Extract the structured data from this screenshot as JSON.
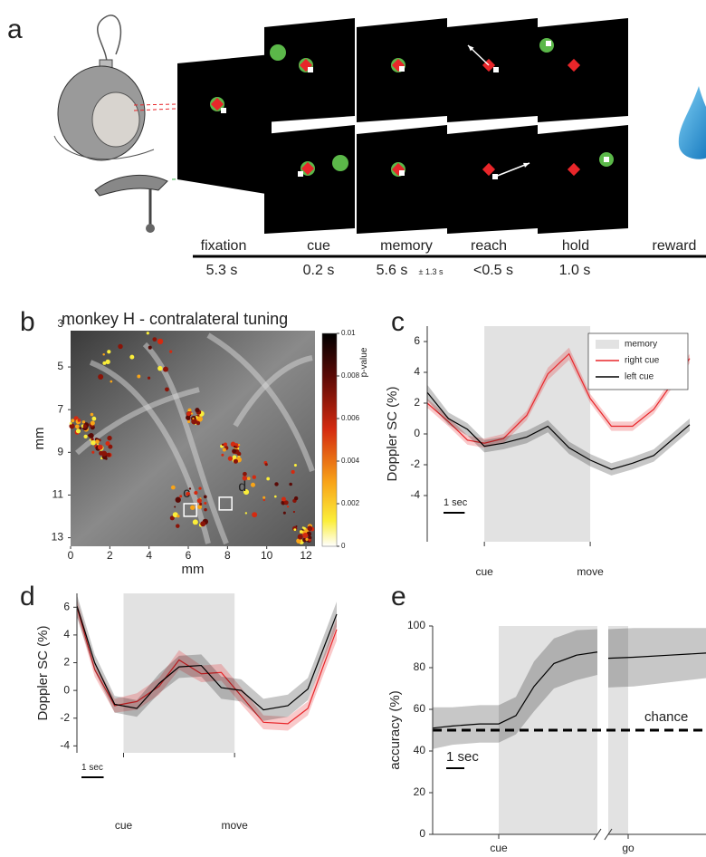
{
  "panel_labels": [
    "a",
    "b",
    "c",
    "d",
    "e"
  ],
  "task": {
    "phases": [
      "fixation",
      "cue",
      "memory",
      "reach",
      "hold",
      "reward"
    ],
    "durations": [
      "5.3 s",
      "0.2 s",
      "5.6 s",
      "<0.5 s",
      "1.0 s"
    ],
    "memory_jitter": "± 1.3 s"
  },
  "chart_data": [
    {
      "type": "image",
      "title": "monkey H - contralateral tuning",
      "xlabel": "mm",
      "ylabel": "mm",
      "xlim": [
        0,
        12.46
      ],
      "ylim": [
        3.3,
        13.4
      ],
      "xticks": [
        0,
        2,
        4,
        6,
        8,
        10,
        12
      ],
      "yticks": [
        3,
        5,
        7,
        9,
        11,
        13
      ],
      "colorbar": {
        "label": "p-value",
        "lim": [
          0,
          0.01
        ],
        "ticks": [
          0.01,
          0.008,
          0.006,
          0.004,
          0.002,
          0
        ]
      },
      "rois": [
        {
          "label": "c",
          "x": 6.1,
          "y": 11.7
        },
        {
          "label": "d",
          "x": 7.9,
          "y": 11.4
        }
      ]
    },
    {
      "type": "line",
      "ylabel": "Doppler SC (%)",
      "xlim": [
        -2.7,
        9.7
      ],
      "ylim": [
        -7,
        7
      ],
      "yticks": [
        -4,
        -2,
        0,
        2,
        4,
        6
      ],
      "xticks": [
        {
          "value": 0,
          "label": "cue"
        },
        {
          "value": 5,
          "label": "move"
        }
      ],
      "shaded": {
        "name": "memory",
        "color": "#e2e2e2",
        "x": [
          [
            0,
            5
          ]
        ]
      },
      "scale_bar": {
        "value": 1,
        "label": "1 sec"
      },
      "legend": "upper right",
      "x": [
        -2.7,
        -1.7,
        -0.8,
        0,
        0.9,
        2,
        3,
        4,
        5,
        6,
        7,
        8,
        9.7
      ],
      "series": [
        {
          "name": "right cue",
          "color": "#e8262a",
          "values": [
            2.0,
            0.8,
            -0.4,
            -0.6,
            -0.3,
            1.2,
            3.9,
            5.2,
            2.3,
            0.5,
            0.5,
            1.6,
            4.9
          ],
          "error": [
            0.3,
            0.3,
            0.3,
            0.3,
            0.3,
            0.3,
            0.4,
            0.4,
            0.3,
            0.3,
            0.3,
            0.3,
            0.3
          ]
        },
        {
          "name": "left cue",
          "color": "#000000",
          "values": [
            2.7,
            1.0,
            0.3,
            -0.8,
            -0.6,
            -0.2,
            0.5,
            -0.9,
            -1.7,
            -2.3,
            -1.9,
            -1.4,
            0.6
          ],
          "error": [
            0.5,
            0.4,
            0.4,
            0.4,
            0.4,
            0.4,
            0.4,
            0.4,
            0.4,
            0.4,
            0.4,
            0.4,
            0.4
          ]
        }
      ]
    },
    {
      "type": "line",
      "ylabel": "Doppler SC (%)",
      "xlim": [
        -2.1,
        9.6
      ],
      "ylim": [
        -4.5,
        7
      ],
      "yticks": [
        -4,
        -2,
        0,
        2,
        4,
        6
      ],
      "xticks": [
        {
          "value": 0,
          "label": "cue"
        },
        {
          "value": 5,
          "label": "move"
        }
      ],
      "shaded": {
        "color": "#e2e2e2",
        "x": [
          [
            0,
            5
          ]
        ]
      },
      "scale_bar": {
        "value": 1,
        "label": "1 sec"
      },
      "x": [
        -2.1,
        -1.3,
        -0.4,
        0.6,
        1.6,
        2.5,
        3.5,
        4.4,
        5.3,
        6.3,
        7.4,
        8.3,
        9.6
      ],
      "series": [
        {
          "color": "#e8262a",
          "values": [
            6.0,
            1.5,
            -1.1,
            -0.8,
            0.3,
            2.2,
            1.2,
            1.3,
            -0.4,
            -2.3,
            -2.4,
            -1.3,
            4.4
          ],
          "error": [
            0.6,
            0.5,
            0.5,
            0.6,
            0.6,
            0.7,
            0.6,
            0.6,
            0.6,
            0.5,
            0.5,
            0.5,
            0.8
          ]
        },
        {
          "color": "#000000",
          "values": [
            6.1,
            2.0,
            -1.0,
            -1.3,
            0.5,
            1.7,
            1.8,
            0.2,
            0.0,
            -1.4,
            -1.1,
            0.1,
            5.5
          ],
          "error": [
            0.8,
            0.6,
            0.6,
            0.6,
            0.7,
            0.8,
            0.8,
            0.8,
            0.8,
            0.8,
            0.8,
            0.8,
            0.9
          ]
        }
      ]
    },
    {
      "type": "line",
      "ylabel": "accuracy (%)",
      "xlim": [
        -3.65,
        11.45
      ],
      "ylim": [
        0,
        100
      ],
      "yticks": [
        0,
        20,
        40,
        60,
        80,
        100
      ],
      "xticks": [
        {
          "value": 0,
          "label": "cue"
        },
        {
          "value": 7.15,
          "label": "go"
        }
      ],
      "shaded": {
        "color": "#e2e2e2",
        "x": [
          [
            0,
            5.45
          ],
          [
            6.05,
            7.15
          ]
        ]
      },
      "xbreak": [
        5.45,
        6.05
      ],
      "scale_bar": {
        "value": 1,
        "label": "1 sec"
      },
      "chance": {
        "value": 50,
        "label": "chance"
      },
      "x": [
        -3.65,
        -2.55,
        -1.05,
        0,
        0.95,
        1.95,
        3.05,
        4.3,
        5.45,
        5.75,
        6.05,
        7.45,
        9.45,
        11.45
      ],
      "series": [
        {
          "color": "#000000",
          "values": [
            51,
            52,
            53,
            53,
            57,
            71,
            82,
            86,
            87.5,
            null,
            84.5,
            85,
            86,
            87
          ],
          "error": [
            10,
            9,
            9,
            9,
            9,
            12,
            12,
            12,
            11,
            null,
            14,
            14,
            13,
            12
          ]
        }
      ]
    }
  ]
}
